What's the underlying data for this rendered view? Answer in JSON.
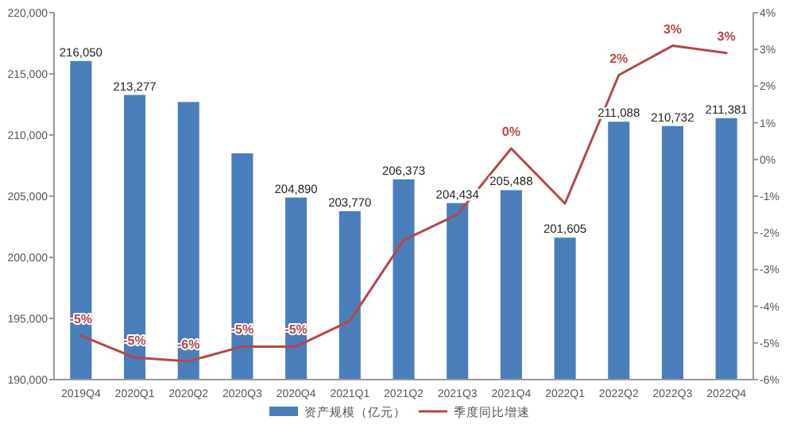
{
  "chart_data": {
    "type": "bar",
    "categories": [
      "2019Q4",
      "2020Q1",
      "2020Q2",
      "2020Q3",
      "2020Q4",
      "2021Q1",
      "2021Q2",
      "2021Q3",
      "2021Q4",
      "2022Q1",
      "2022Q2",
      "2022Q3",
      "2022Q4"
    ],
    "series": [
      {
        "name": "资产规模（亿元）",
        "color": "#4a7ebb",
        "values": [
          216050,
          213277,
          212700,
          208500,
          204890,
          203770,
          206373,
          204434,
          205488,
          201605,
          211088,
          210732,
          211381
        ],
        "value_labels": [
          "216,050",
          "213,277",
          null,
          null,
          "204,890",
          "203,770",
          "206,373",
          "204,434",
          "205,488",
          "201,605",
          "211,088",
          "210,732",
          "211,381"
        ]
      },
      {
        "name": "季度同比增速",
        "type": "line",
        "axis": "y2",
        "color": "#b5474b",
        "values": [
          -4.8,
          -5.4,
          -5.5,
          -5.1,
          -5.1,
          -4.4,
          -2.2,
          -1.5,
          0.3,
          -1.2,
          2.3,
          3.1,
          2.9
        ],
        "value_labels": [
          "-5%",
          "-5%",
          "-6%",
          "-5%",
          "-5%",
          null,
          null,
          null,
          "0%",
          null,
          "2%",
          "3%",
          "3%"
        ]
      }
    ],
    "ylim": [
      190000,
      220000
    ],
    "yticks": [
      {
        "value": 190000,
        "label": "190,000"
      },
      {
        "value": 195000,
        "label": "195,000"
      },
      {
        "value": 200000,
        "label": "200,000"
      },
      {
        "value": 205000,
        "label": "205,000"
      },
      {
        "value": 210000,
        "label": "210,000"
      },
      {
        "value": 215000,
        "label": "215,000"
      },
      {
        "value": 220000,
        "label": "220,000"
      }
    ],
    "y2lim": [
      -6,
      4
    ],
    "y2ticks": [
      {
        "value": -6,
        "label": "-6%"
      },
      {
        "value": -5,
        "label": "-5%"
      },
      {
        "value": -4,
        "label": "-4%"
      },
      {
        "value": -3,
        "label": "-3%"
      },
      {
        "value": -2,
        "label": "-2%"
      },
      {
        "value": -1,
        "label": "-1%"
      },
      {
        "value": 0,
        "label": "0%"
      },
      {
        "value": 1,
        "label": "1%"
      },
      {
        "value": 2,
        "label": "2%"
      },
      {
        "value": 3,
        "label": "3%"
      },
      {
        "value": 4,
        "label": "4%"
      }
    ],
    "grid": false,
    "legend": "bottom"
  }
}
